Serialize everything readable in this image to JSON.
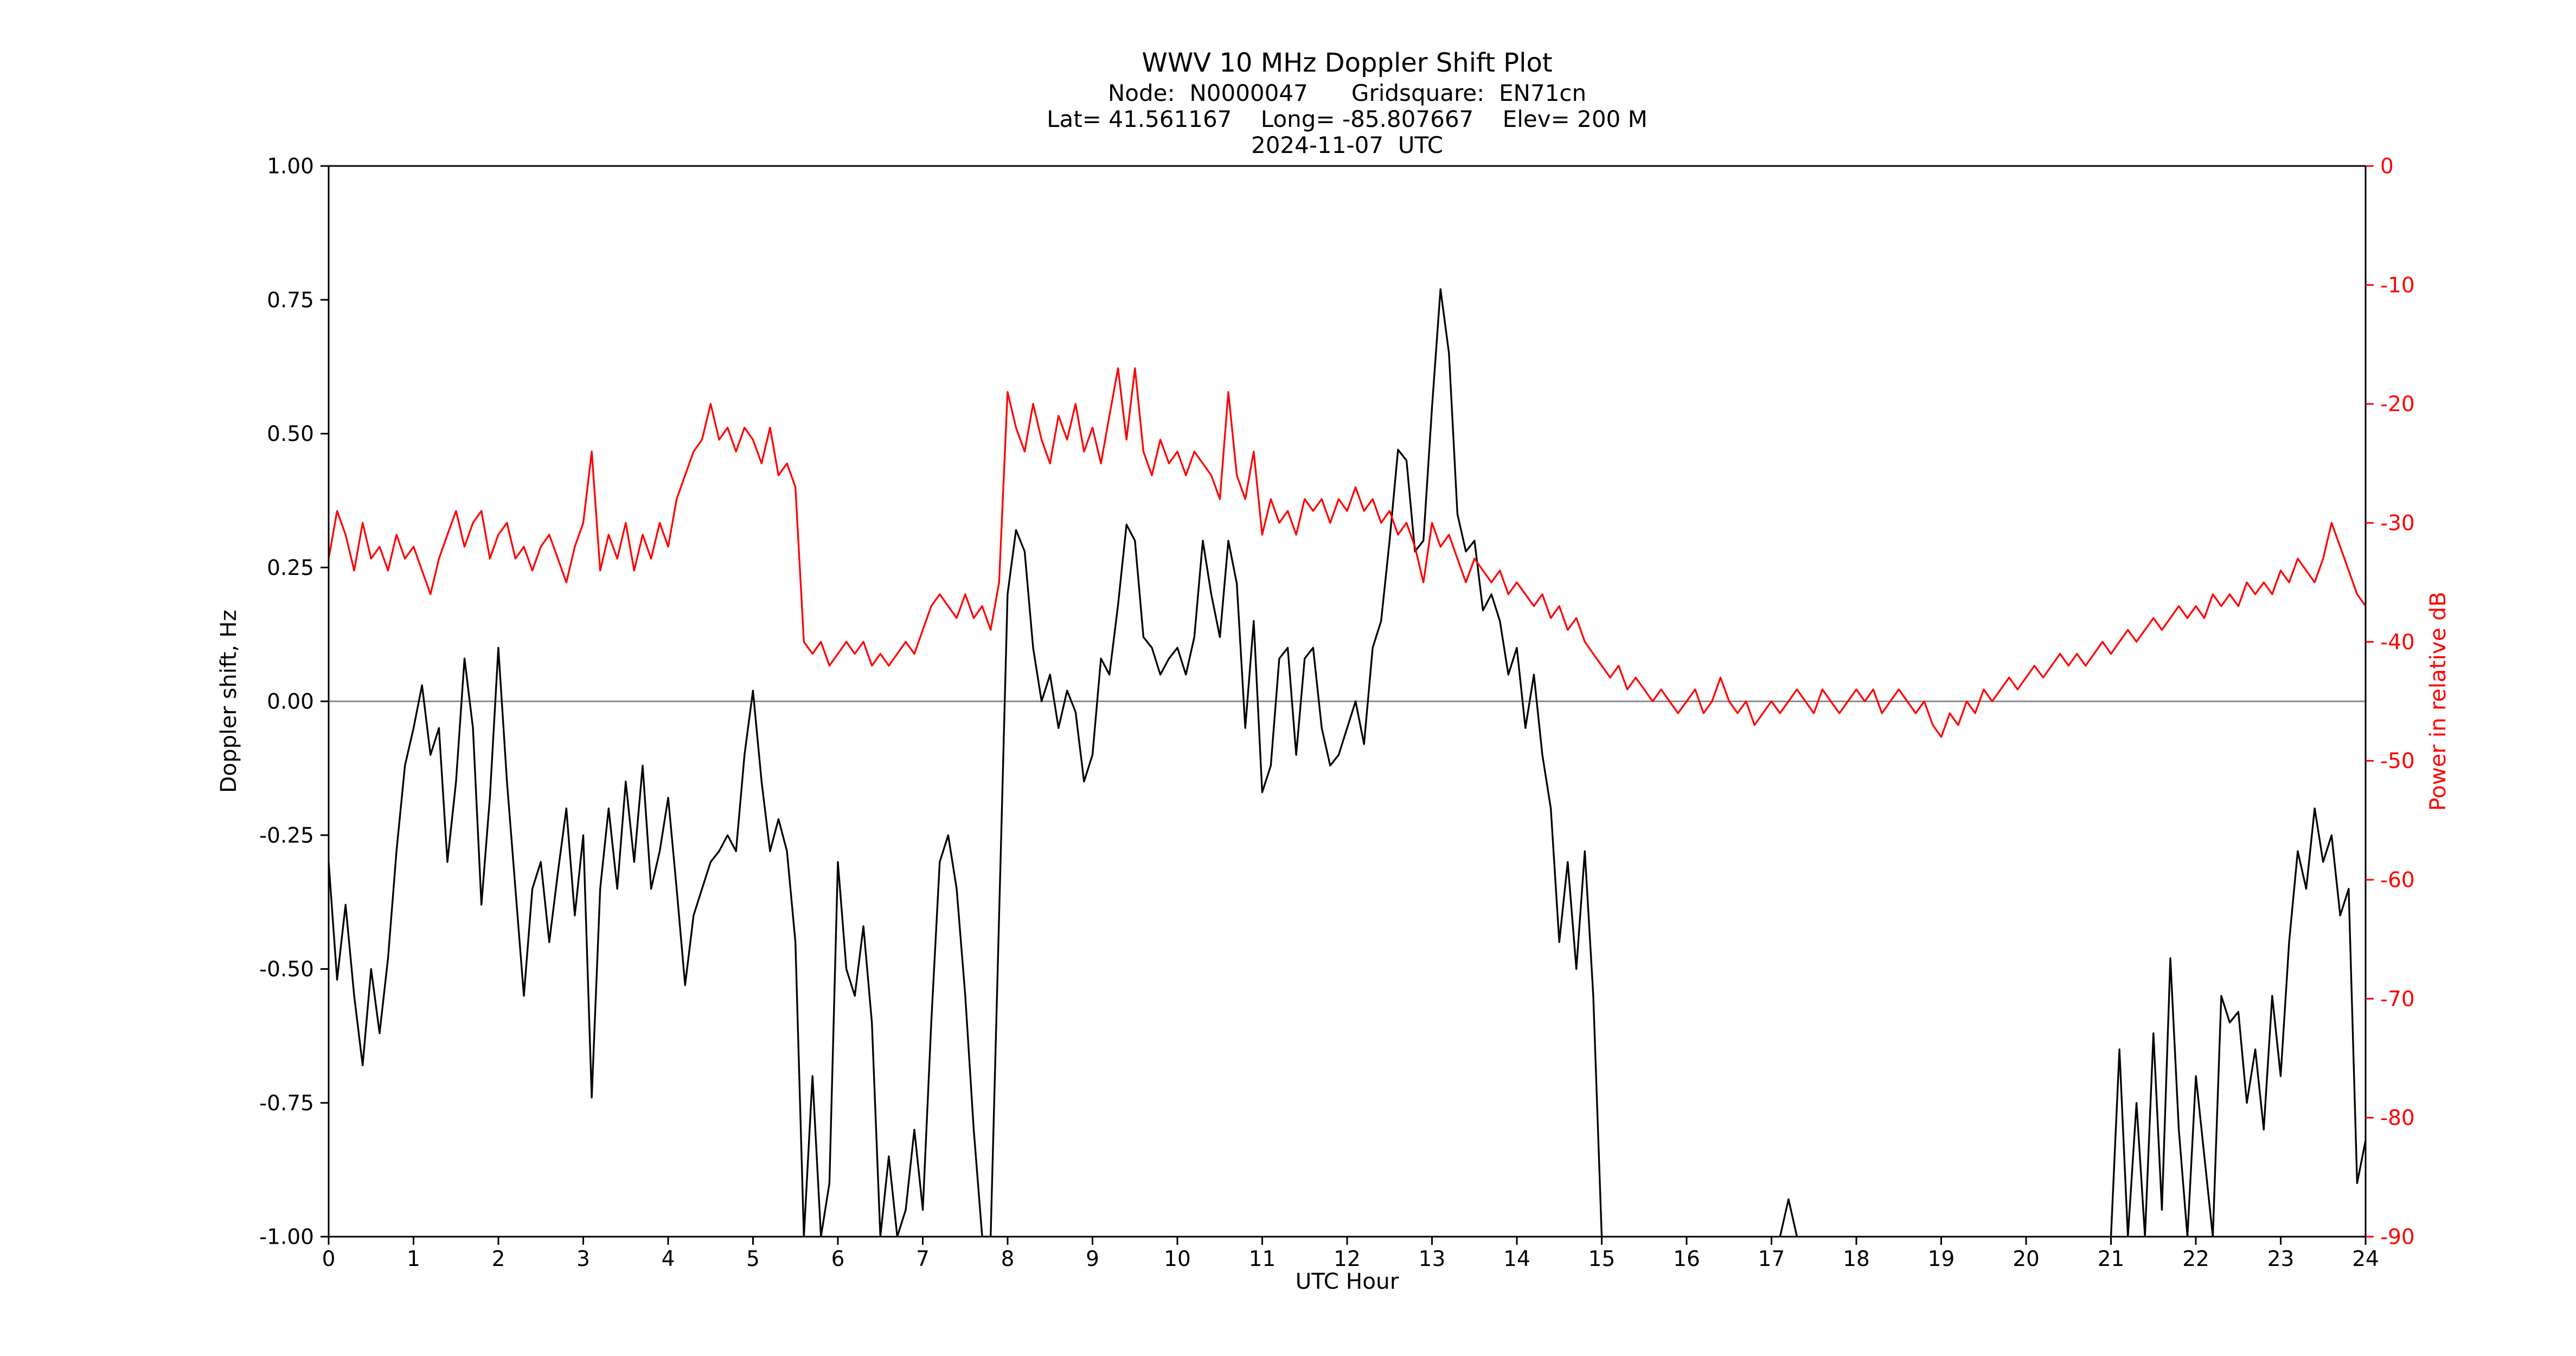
{
  "header": {
    "title": "WWV 10 MHz Doppler Shift Plot",
    "node_line": "Node:  N0000047      Gridsquare:  EN71cn",
    "location_line": "Lat= 41.561167    Long= -85.807667    Elev= 200 M",
    "date_line": "2024-11-07  UTC"
  },
  "colors": {
    "doppler": "#000000",
    "power": "#ff0000",
    "zero_line": "#808080",
    "frame": "#000000",
    "background": "#ffffff"
  },
  "chart_data": {
    "type": "line",
    "title": "WWV 10 MHz Doppler Shift Plot",
    "xlabel": "UTC Hour",
    "ylabel_left": "Doppler shift, Hz",
    "ylabel_right": "Power in relative dB",
    "xlim": [
      0,
      24
    ],
    "ylim_left": [
      -1.0,
      1.0
    ],
    "ylim_right": [
      -90,
      0
    ],
    "x_ticks": [
      0,
      1,
      2,
      3,
      4,
      5,
      6,
      7,
      8,
      9,
      10,
      11,
      12,
      13,
      14,
      15,
      16,
      17,
      18,
      19,
      20,
      21,
      22,
      23,
      24
    ],
    "y_ticks_left": [
      -1.0,
      -0.75,
      -0.5,
      -0.25,
      0.0,
      0.25,
      0.5,
      0.75,
      1.0
    ],
    "y_ticks_right": [
      0,
      -10,
      -20,
      -30,
      -40,
      -50,
      -60,
      -70,
      -80,
      -90
    ],
    "grid": "zero-line-only",
    "legend": "none",
    "x_step": 0.1,
    "series": [
      {
        "name": "doppler-shift",
        "label": "Doppler shift, Hz",
        "color": "#000000",
        "axis": "left",
        "values": [
          -0.3,
          -0.52,
          -0.38,
          -0.55,
          -0.68,
          -0.5,
          -0.62,
          -0.48,
          -0.28,
          -0.12,
          -0.05,
          0.03,
          -0.1,
          -0.05,
          -0.3,
          -0.15,
          0.08,
          -0.05,
          -0.38,
          -0.18,
          0.1,
          -0.15,
          -0.35,
          -0.55,
          -0.35,
          -0.3,
          -0.45,
          -0.32,
          -0.2,
          -0.4,
          -0.25,
          -0.74,
          -0.35,
          -0.2,
          -0.35,
          -0.15,
          -0.3,
          -0.12,
          -0.35,
          -0.28,
          -0.18,
          -0.35,
          -0.53,
          -0.4,
          -0.35,
          -0.3,
          -0.28,
          -0.25,
          -0.28,
          -0.1,
          0.02,
          -0.15,
          -0.28,
          -0.22,
          -0.28,
          -0.45,
          -1.0,
          -0.7,
          -1.0,
          -0.9,
          -0.3,
          -0.5,
          -0.55,
          -0.42,
          -0.6,
          -1.0,
          -0.85,
          -1.0,
          -0.95,
          -0.8,
          -0.95,
          -0.6,
          -0.3,
          -0.25,
          -0.35,
          -0.55,
          -0.8,
          -1.0,
          -1.0,
          -0.4,
          0.2,
          0.32,
          0.28,
          0.1,
          0.0,
          0.05,
          -0.05,
          0.02,
          -0.02,
          -0.15,
          -0.1,
          0.08,
          0.05,
          0.18,
          0.33,
          0.3,
          0.12,
          0.1,
          0.05,
          0.08,
          0.1,
          0.05,
          0.12,
          0.3,
          0.2,
          0.12,
          0.3,
          0.22,
          -0.05,
          0.15,
          -0.17,
          -0.12,
          0.08,
          0.1,
          -0.1,
          0.08,
          0.1,
          -0.05,
          -0.12,
          -0.1,
          -0.05,
          0.0,
          -0.08,
          0.1,
          0.15,
          0.3,
          0.47,
          0.45,
          0.28,
          0.3,
          0.55,
          0.77,
          0.65,
          0.35,
          0.28,
          0.3,
          0.17,
          0.2,
          0.15,
          0.05,
          0.1,
          -0.05,
          0.05,
          -0.1,
          -0.2,
          -0.45,
          -0.3,
          -0.5,
          -0.28,
          -0.55,
          -1.0,
          null,
          null,
          null,
          null,
          null,
          null,
          null,
          null,
          null,
          null,
          null,
          null,
          null,
          null,
          null,
          null,
          null,
          null,
          null,
          null,
          -1.0,
          -0.93,
          -1.0,
          null,
          null,
          null,
          null,
          null,
          null,
          null,
          null,
          null,
          null,
          null,
          null,
          null,
          null,
          null,
          null,
          null,
          null,
          null,
          null,
          null,
          null,
          null,
          null,
          null,
          null,
          null,
          null,
          null,
          null,
          null,
          null,
          null,
          null,
          null,
          null,
          -1.0,
          -0.65,
          -1.0,
          -0.75,
          -1.0,
          -0.62,
          -0.95,
          -0.48,
          -0.8,
          -1.0,
          -0.7,
          -0.85,
          -1.0,
          -0.55,
          -0.6,
          -0.58,
          -0.75,
          -0.65,
          -0.8,
          -0.55,
          -0.7,
          -0.45,
          -0.28,
          -0.35,
          -0.2,
          -0.3,
          -0.25,
          -0.4,
          -0.35,
          -0.9,
          -0.82
        ]
      },
      {
        "name": "power",
        "label": "Power in relative dB",
        "color": "#ff0000",
        "axis": "right",
        "values": [
          -33,
          -29,
          -31,
          -34,
          -30,
          -33,
          -32,
          -34,
          -31,
          -33,
          -32,
          -34,
          -36,
          -33,
          -31,
          -29,
          -32,
          -30,
          -29,
          -33,
          -31,
          -30,
          -33,
          -32,
          -34,
          -32,
          -31,
          -33,
          -35,
          -32,
          -30,
          -24,
          -34,
          -31,
          -33,
          -30,
          -34,
          -31,
          -33,
          -30,
          -32,
          -28,
          -26,
          -24,
          -23,
          -20,
          -23,
          -22,
          -24,
          -22,
          -23,
          -25,
          -22,
          -26,
          -25,
          -27,
          -40,
          -41,
          -40,
          -42,
          -41,
          -40,
          -41,
          -40,
          -42,
          -41,
          -42,
          -41,
          -40,
          -41,
          -39,
          -37,
          -36,
          -37,
          -38,
          -36,
          -38,
          -37,
          -39,
          -35,
          -19,
          -22,
          -24,
          -20,
          -23,
          -25,
          -21,
          -23,
          -20,
          -24,
          -22,
          -25,
          -21,
          -17,
          -23,
          -17,
          -24,
          -26,
          -23,
          -25,
          -24,
          -26,
          -24,
          -25,
          -26,
          -28,
          -19,
          -26,
          -28,
          -24,
          -31,
          -28,
          -30,
          -29,
          -31,
          -28,
          -29,
          -28,
          -30,
          -28,
          -29,
          -27,
          -29,
          -28,
          -30,
          -29,
          -31,
          -30,
          -32,
          -35,
          -30,
          -32,
          -31,
          -33,
          -35,
          -33,
          -34,
          -35,
          -34,
          -36,
          -35,
          -36,
          -37,
          -36,
          -38,
          -37,
          -39,
          -38,
          -40,
          -41,
          -42,
          -43,
          -42,
          -44,
          -43,
          -44,
          -45,
          -44,
          -45,
          -46,
          -45,
          -44,
          -46,
          -45,
          -43,
          -45,
          -46,
          -45,
          -47,
          -46,
          -45,
          -46,
          -45,
          -44,
          -45,
          -46,
          -44,
          -45,
          -46,
          -45,
          -44,
          -45,
          -44,
          -46,
          -45,
          -44,
          -45,
          -46,
          -45,
          -47,
          -48,
          -46,
          -47,
          -45,
          -46,
          -44,
          -45,
          -44,
          -43,
          -44,
          -43,
          -42,
          -43,
          -42,
          -41,
          -42,
          -41,
          -42,
          -41,
          -40,
          -41,
          -40,
          -39,
          -40,
          -39,
          -38,
          -39,
          -38,
          -37,
          -38,
          -37,
          -38,
          -36,
          -37,
          -36,
          -37,
          -35,
          -36,
          -35,
          -36,
          -34,
          -35,
          -33,
          -34,
          -35,
          -33,
          -30,
          -32,
          -34,
          -36,
          -37
        ]
      }
    ]
  }
}
